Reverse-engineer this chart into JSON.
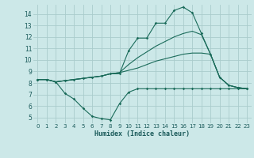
{
  "xlabel": "Humidex (Indice chaleur)",
  "background_color": "#cce8e8",
  "grid_color": "#aacccc",
  "line_color": "#1a6b5a",
  "xlim": [
    -0.5,
    23.5
  ],
  "ylim": [
    4.5,
    14.8
  ],
  "xticks": [
    0,
    1,
    2,
    3,
    4,
    5,
    6,
    7,
    8,
    9,
    10,
    11,
    12,
    13,
    14,
    15,
    16,
    17,
    18,
    19,
    20,
    21,
    22,
    23
  ],
  "yticks": [
    5,
    6,
    7,
    8,
    9,
    10,
    11,
    12,
    13,
    14
  ],
  "series": {
    "max": {
      "x": [
        0,
        1,
        2,
        3,
        4,
        5,
        6,
        7,
        8,
        9,
        10,
        11,
        12,
        13,
        14,
        15,
        16,
        17,
        18,
        19,
        20,
        21,
        22,
        23
      ],
      "y": [
        8.3,
        8.3,
        8.1,
        8.2,
        8.3,
        8.4,
        8.5,
        8.6,
        8.8,
        8.8,
        10.8,
        11.9,
        11.9,
        13.2,
        13.2,
        14.3,
        14.6,
        14.1,
        12.3,
        10.5,
        8.5,
        7.8,
        7.6,
        7.5
      ]
    },
    "upper_mid": {
      "x": [
        0,
        1,
        2,
        3,
        4,
        5,
        6,
        7,
        8,
        9,
        10,
        11,
        12,
        13,
        14,
        15,
        16,
        17,
        18,
        19,
        20,
        21,
        22,
        23
      ],
      "y": [
        8.3,
        8.3,
        8.1,
        8.2,
        8.3,
        8.4,
        8.5,
        8.6,
        8.8,
        8.9,
        9.6,
        10.2,
        10.7,
        11.2,
        11.6,
        12.0,
        12.3,
        12.5,
        12.2,
        10.5,
        8.5,
        7.8,
        7.6,
        7.5
      ]
    },
    "lower_mid": {
      "x": [
        0,
        1,
        2,
        3,
        4,
        5,
        6,
        7,
        8,
        9,
        10,
        11,
        12,
        13,
        14,
        15,
        16,
        17,
        18,
        19,
        20,
        21,
        22,
        23
      ],
      "y": [
        8.3,
        8.3,
        8.1,
        8.2,
        8.3,
        8.4,
        8.5,
        8.6,
        8.8,
        8.9,
        9.1,
        9.3,
        9.6,
        9.9,
        10.1,
        10.3,
        10.5,
        10.6,
        10.6,
        10.5,
        8.5,
        7.8,
        7.6,
        7.5
      ]
    },
    "min": {
      "x": [
        0,
        1,
        2,
        3,
        4,
        5,
        6,
        7,
        8,
        9,
        10,
        11,
        12,
        13,
        14,
        15,
        16,
        17,
        18,
        19,
        20,
        21,
        22,
        23
      ],
      "y": [
        8.3,
        8.3,
        8.1,
        7.1,
        6.6,
        5.8,
        5.1,
        4.9,
        4.8,
        6.2,
        7.2,
        7.5,
        7.5,
        7.5,
        7.5,
        7.5,
        7.5,
        7.5,
        7.5,
        7.5,
        7.5,
        7.5,
        7.5,
        7.5
      ]
    }
  }
}
